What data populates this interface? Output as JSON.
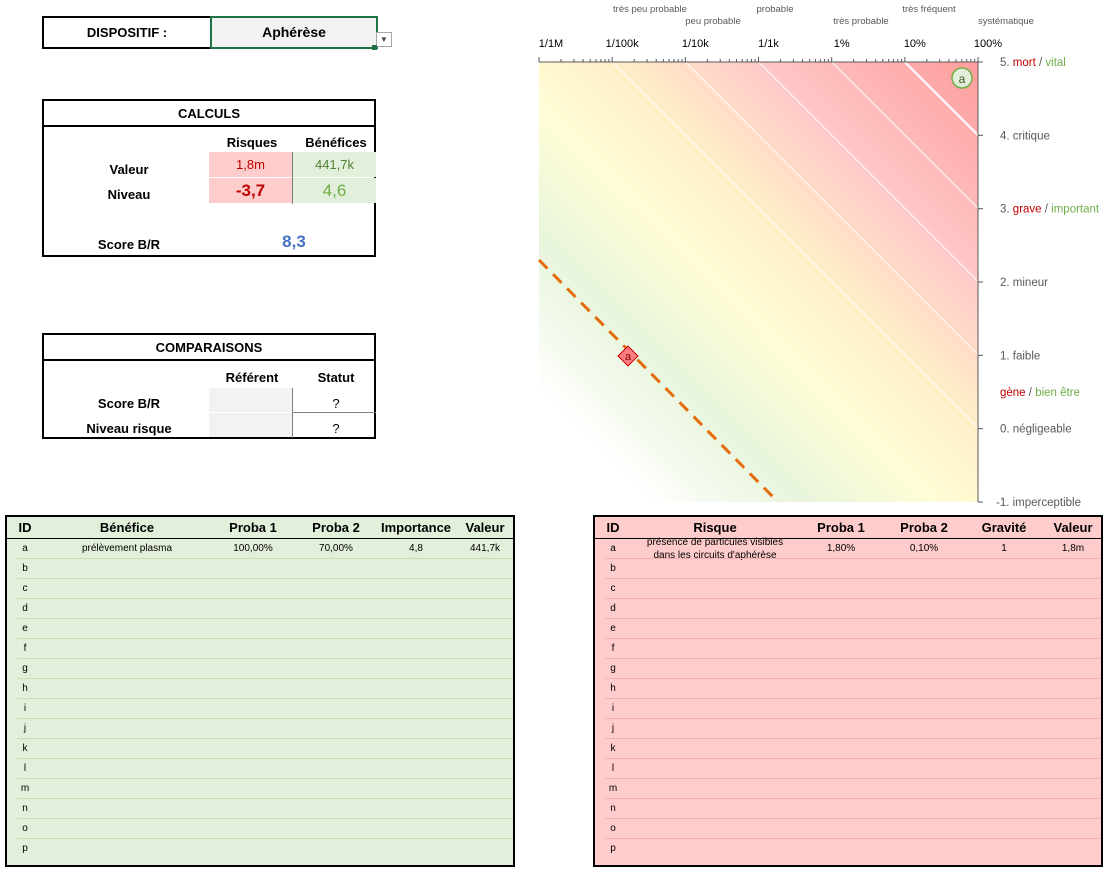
{
  "dispositif": {
    "label": "DISPOSITIF :",
    "value": "Aphérèse"
  },
  "calculs": {
    "title": "CALCULS",
    "col_risques": "Risques",
    "col_benefices": "Bénéfices",
    "row_valeur": "Valeur",
    "row_niveau": "Niveau",
    "risque_valeur": "1,8m",
    "benefice_valeur": "441,7k",
    "risque_niveau": "-3,7",
    "benefice_niveau": "4,6",
    "score_label": "Score B/R",
    "score_value": "8,3"
  },
  "comparaisons": {
    "title": "COMPARAISONS",
    "col_referent": "Référent",
    "col_statut": "Statut",
    "row_score": "Score B/R",
    "row_niveau": "Niveau risque",
    "score_statut": "?",
    "niveau_statut": "?"
  },
  "chart_data": {
    "type": "scatter",
    "x_axis": {
      "scale": "log",
      "ticks": [
        "1/1M",
        "1/100k",
        "1/10k",
        "1/1k",
        "1%",
        "10%",
        "100%"
      ],
      "categories": [
        "très peu probable",
        "peu probable",
        "probable",
        "très probable",
        "très fréquent",
        "systématique"
      ]
    },
    "y_axis": {
      "range": [
        -1,
        5
      ],
      "levels": [
        {
          "value": 5,
          "prefix": "5. ",
          "risk": "mort",
          "sep": " / ",
          "benefit": "vital"
        },
        {
          "value": 4,
          "text": "4. critique"
        },
        {
          "value": 3,
          "prefix": "3. ",
          "risk": "grave",
          "sep": " / ",
          "benefit": "important"
        },
        {
          "value": 2,
          "text": "2. mineur"
        },
        {
          "value": 1,
          "text": "1. faible"
        },
        {
          "value": 0.5,
          "prefix": "",
          "risk": "gène",
          "sep": " / ",
          "benefit": "bien être"
        },
        {
          "value": 0,
          "text": "0. négligeable"
        },
        {
          "value": -1,
          "text": "-1. imperceptible"
        }
      ]
    },
    "points": [
      {
        "label": "a",
        "kind": "benefice"
      },
      {
        "label": "a",
        "kind": "risque"
      }
    ],
    "colors": {
      "risk": "#c00000",
      "benefit": "#70ad47",
      "reference_line": "#e46c0a"
    }
  },
  "benefices": {
    "headers": [
      "ID",
      "Bénéfice",
      "Proba 1",
      "Proba 2",
      "Importance",
      "Valeur"
    ],
    "rows": [
      {
        "id": "a",
        "name": "prélèvement plasma",
        "p1": "100,00%",
        "p2": "70,00%",
        "importance": "4,8",
        "valeur": "441,7k"
      },
      {
        "id": "b"
      },
      {
        "id": "c"
      },
      {
        "id": "d"
      },
      {
        "id": "e"
      },
      {
        "id": "f"
      },
      {
        "id": "g"
      },
      {
        "id": "h"
      },
      {
        "id": "i"
      },
      {
        "id": "j"
      },
      {
        "id": "k"
      },
      {
        "id": "l"
      },
      {
        "id": "m"
      },
      {
        "id": "n"
      },
      {
        "id": "o"
      },
      {
        "id": "p"
      }
    ]
  },
  "risques": {
    "headers": [
      "ID",
      "Risque",
      "Proba 1",
      "Proba 2",
      "Gravité",
      "Valeur"
    ],
    "rows": [
      {
        "id": "a",
        "name1": "présence de particules visibles",
        "name2": "dans les circuits d'aphérèse",
        "p1": "1,80%",
        "p2": "0,10%",
        "gravite": "1",
        "valeur": "1,8m"
      },
      {
        "id": "b"
      },
      {
        "id": "c"
      },
      {
        "id": "d"
      },
      {
        "id": "e"
      },
      {
        "id": "f"
      },
      {
        "id": "g"
      },
      {
        "id": "h"
      },
      {
        "id": "i"
      },
      {
        "id": "j"
      },
      {
        "id": "k"
      },
      {
        "id": "l"
      },
      {
        "id": "m"
      },
      {
        "id": "n"
      },
      {
        "id": "o"
      },
      {
        "id": "p"
      }
    ]
  }
}
